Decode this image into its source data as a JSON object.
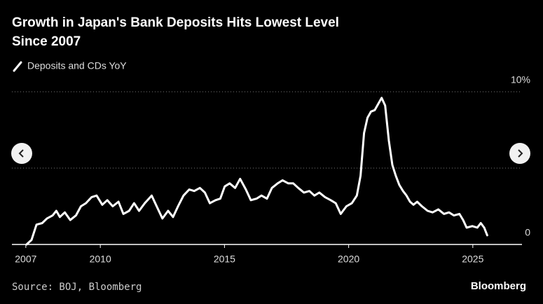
{
  "chart_data": {
    "type": "line",
    "title_lines": [
      "Growth in Japan's Bank Deposits Hits Lowest Level",
      "Since 2007"
    ],
    "source": "Source: BOJ, Bloomberg",
    "brand": "Bloomberg",
    "series": [
      {
        "name": "Deposits and CDs YoY",
        "color": "#ffffff",
        "x": [
          2007.03,
          2007.23,
          2007.43,
          2007.66,
          2007.85,
          2008.08,
          2008.23,
          2008.37,
          2008.57,
          2008.79,
          2009.02,
          2009.22,
          2009.42,
          2009.65,
          2009.85,
          2010.08,
          2010.28,
          2010.5,
          2010.73,
          2010.93,
          2011.16,
          2011.36,
          2011.56,
          2011.79,
          2012.07,
          2012.27,
          2012.5,
          2012.73,
          2012.93,
          2013.13,
          2013.35,
          2013.58,
          2013.78,
          2014.01,
          2014.21,
          2014.41,
          2014.64,
          2014.83,
          2015.01,
          2015.21,
          2015.43,
          2015.63,
          2015.86,
          2016.06,
          2016.29,
          2016.49,
          2016.71,
          2016.91,
          2017.14,
          2017.34,
          2017.57,
          2017.77,
          2017.97,
          2018.2,
          2018.42,
          2018.62,
          2018.82,
          2019.05,
          2019.28,
          2019.48,
          2019.68,
          2019.91,
          2020.13,
          2020.33,
          2020.48,
          2020.62,
          2020.76,
          2020.9,
          2021.05,
          2021.19,
          2021.33,
          2021.47,
          2021.62,
          2021.76,
          2021.9,
          2022.04,
          2022.19,
          2022.33,
          2022.47,
          2022.61,
          2022.76,
          2022.95,
          2023.18,
          2023.38,
          2023.61,
          2023.84,
          2024.04,
          2024.24,
          2024.46,
          2024.61,
          2024.75,
          2024.98,
          2025.18,
          2025.32,
          2025.46,
          2025.58
        ],
        "values": [
          0,
          0.3,
          1.3,
          1.4,
          1.7,
          1.9,
          2.2,
          1.8,
          2.1,
          1.6,
          1.9,
          2.5,
          2.7,
          3.1,
          3.2,
          2.6,
          2.9,
          2.5,
          2.8,
          2.0,
          2.2,
          2.7,
          2.2,
          2.7,
          3.2,
          2.5,
          1.7,
          2.2,
          1.8,
          2.5,
          3.2,
          3.6,
          3.5,
          3.7,
          3.4,
          2.7,
          2.9,
          3.0,
          3.8,
          4.0,
          3.7,
          4.3,
          3.6,
          2.9,
          3.0,
          3.2,
          3.0,
          3.7,
          4.0,
          4.2,
          4.0,
          4.0,
          3.7,
          3.4,
          3.5,
          3.2,
          3.4,
          3.1,
          2.9,
          2.7,
          2.0,
          2.5,
          2.7,
          3.2,
          4.5,
          7.3,
          8.3,
          8.7,
          8.8,
          9.2,
          9.6,
          9.1,
          6.8,
          5.2,
          4.5,
          3.9,
          3.5,
          3.2,
          2.8,
          2.6,
          2.8,
          2.5,
          2.2,
          2.1,
          2.3,
          2.0,
          2.1,
          1.9,
          2.0,
          1.6,
          1.1,
          1.2,
          1.1,
          1.4,
          1.1,
          0.6
        ]
      }
    ],
    "xlim": [
      2006.44,
      2026.98
    ],
    "xticks": [
      2007,
      2010,
      2015,
      2020,
      2025
    ],
    "ylim": [
      0,
      10
    ],
    "yticks": [
      0,
      {
        "value": 10,
        "label": "10%"
      }
    ],
    "ygrid": [
      5,
      10
    ]
  }
}
